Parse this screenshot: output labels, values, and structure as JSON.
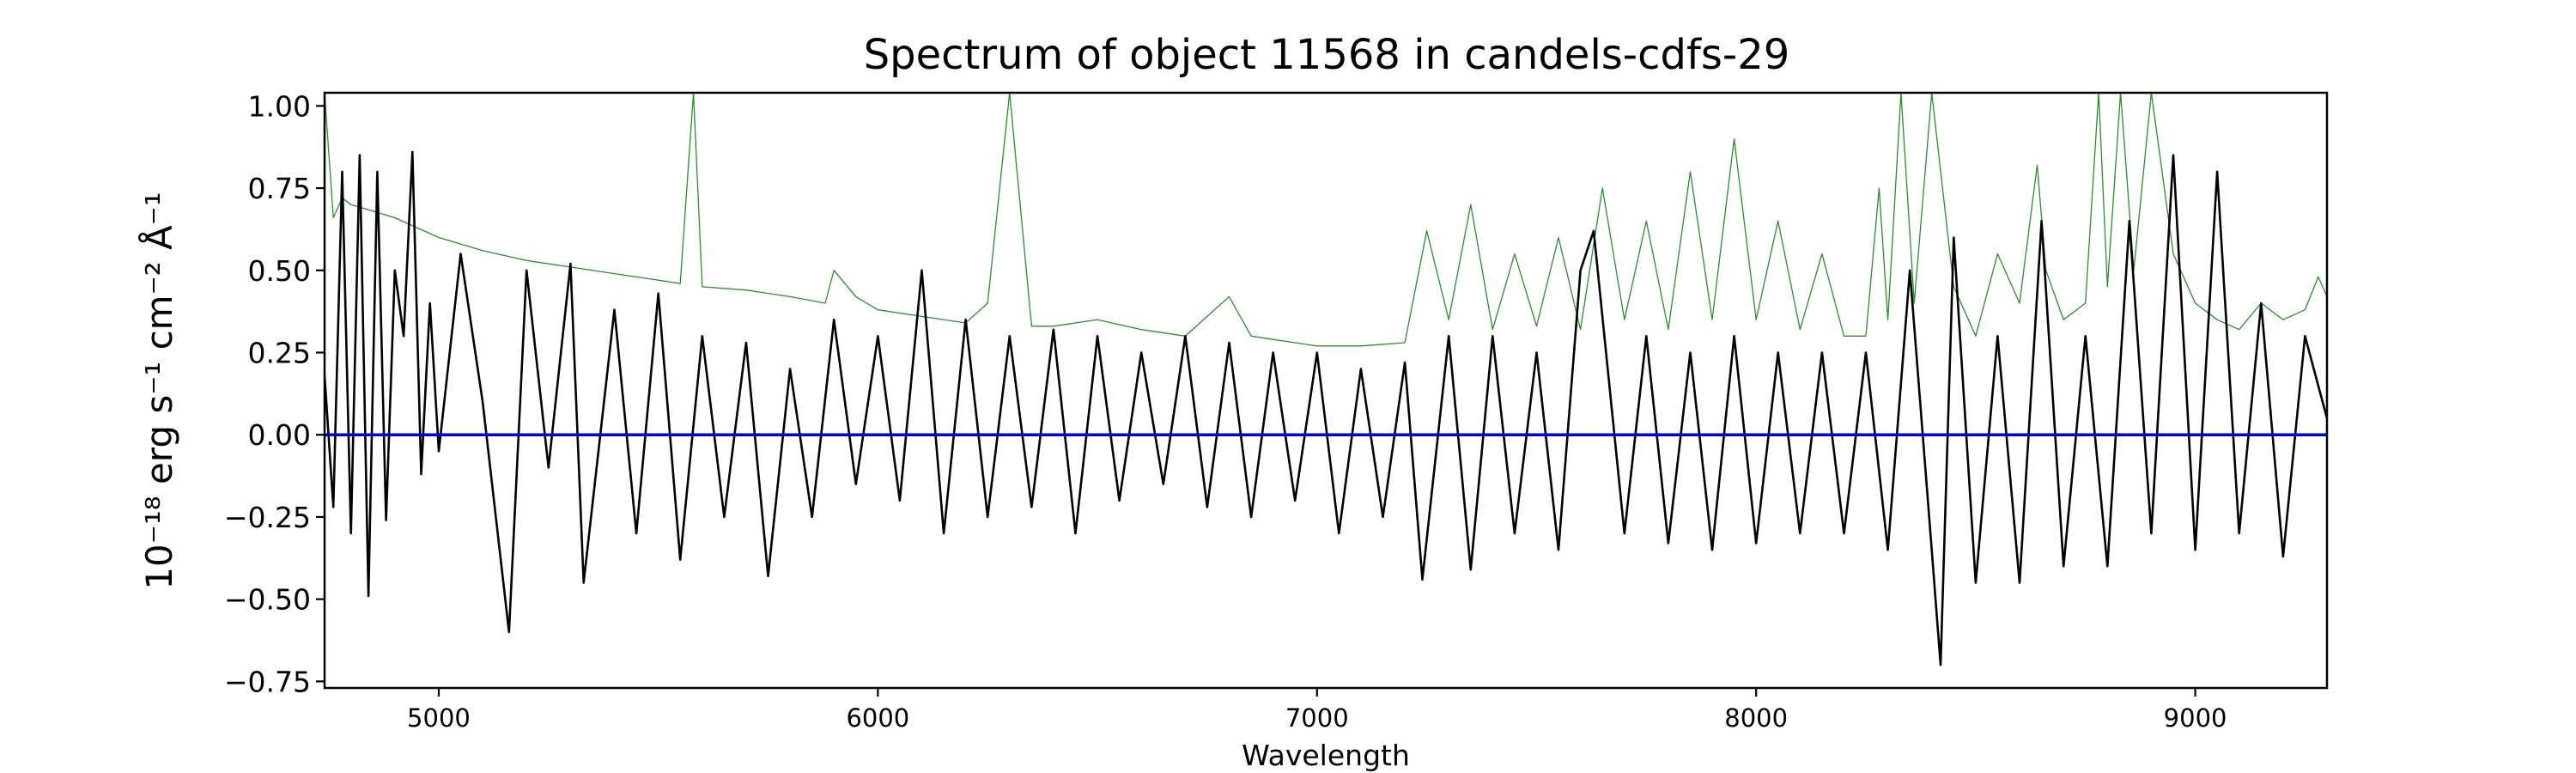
{
  "chart_data": {
    "type": "line",
    "title": "Spectrum of object 11568 in candels-cdfs-29",
    "xlabel": "Wavelength",
    "ylabel": "10⁻¹⁸ erg s⁻¹ cm⁻² Å⁻¹",
    "xlim": [
      4740,
      9300
    ],
    "ylim": [
      -0.77,
      1.04
    ],
    "xticks": [
      5000,
      6000,
      7000,
      8000,
      9000
    ],
    "xtick_labels": [
      "5000",
      "6000",
      "7000",
      "8000",
      "9000"
    ],
    "yticks": [
      -0.75,
      -0.5,
      -0.25,
      0.0,
      0.25,
      0.5,
      0.75,
      1.0
    ],
    "ytick_labels": [
      "−0.75",
      "−0.50",
      "−0.25",
      "0.00",
      "0.25",
      "0.50",
      "0.75",
      "1.00"
    ],
    "grid": false,
    "series": [
      {
        "role": "flux",
        "color": "#000000",
        "x": [
          4740,
          4760,
          4780,
          4800,
          4820,
          4840,
          4860,
          4880,
          4900,
          4920,
          4940,
          4960,
          4980,
          5000,
          5050,
          5100,
          5160,
          5200,
          5250,
          5300,
          5330,
          5400,
          5450,
          5500,
          5550,
          5600,
          5650,
          5700,
          5750,
          5800,
          5850,
          5900,
          5950,
          6000,
          6050,
          6100,
          6150,
          6200,
          6250,
          6300,
          6350,
          6400,
          6450,
          6500,
          6550,
          6600,
          6650,
          6700,
          6750,
          6800,
          6850,
          6900,
          6950,
          7000,
          7050,
          7100,
          7150,
          7200,
          7240,
          7300,
          7350,
          7400,
          7450,
          7500,
          7550,
          7600,
          7630,
          7700,
          7750,
          7800,
          7850,
          7900,
          7950,
          8000,
          8050,
          8100,
          8150,
          8200,
          8250,
          8300,
          8350,
          8400,
          8420,
          8450,
          8500,
          8550,
          8600,
          8650,
          8700,
          8750,
          8800,
          8850,
          8900,
          8950,
          9000,
          9050,
          9100,
          9150,
          9200,
          9250,
          9300
        ],
        "y": [
          0.18,
          -0.22,
          0.8,
          -0.3,
          0.85,
          -0.49,
          0.8,
          -0.26,
          0.5,
          0.3,
          0.86,
          -0.12,
          0.4,
          -0.05,
          0.55,
          0.1,
          -0.6,
          0.5,
          -0.1,
          0.52,
          -0.45,
          0.38,
          -0.3,
          0.43,
          -0.38,
          0.3,
          -0.25,
          0.28,
          -0.43,
          0.2,
          -0.25,
          0.35,
          -0.15,
          0.3,
          -0.2,
          0.5,
          -0.3,
          0.35,
          -0.25,
          0.3,
          -0.22,
          0.32,
          -0.3,
          0.3,
          -0.2,
          0.25,
          -0.15,
          0.3,
          -0.22,
          0.28,
          -0.25,
          0.25,
          -0.2,
          0.25,
          -0.3,
          0.2,
          -0.25,
          0.22,
          -0.44,
          0.3,
          -0.41,
          0.3,
          -0.3,
          0.25,
          -0.35,
          0.5,
          0.62,
          -0.3,
          0.3,
          -0.33,
          0.25,
          -0.35,
          0.3,
          -0.33,
          0.25,
          -0.3,
          0.25,
          -0.3,
          0.25,
          -0.35,
          0.5,
          -0.35,
          -0.7,
          0.6,
          -0.45,
          0.3,
          -0.45,
          0.65,
          -0.4,
          0.3,
          -0.4,
          0.65,
          -0.3,
          0.85,
          -0.35,
          0.8,
          -0.3,
          0.4,
          -0.37,
          0.3,
          0.05
        ]
      },
      {
        "role": "error",
        "color": "#2e8b2e",
        "x": [
          4740,
          4750,
          4760,
          4780,
          4800,
          4850,
          4900,
          5000,
          5100,
          5200,
          5300,
          5400,
          5500,
          5550,
          5580,
          5600,
          5700,
          5800,
          5880,
          5900,
          5950,
          6000,
          6100,
          6200,
          6250,
          6300,
          6350,
          6400,
          6500,
          6600,
          6700,
          6800,
          6850,
          6900,
          7000,
          7100,
          7200,
          7250,
          7300,
          7350,
          7400,
          7450,
          7500,
          7550,
          7600,
          7650,
          7700,
          7750,
          7800,
          7850,
          7900,
          7950,
          8000,
          8050,
          8100,
          8150,
          8200,
          8250,
          8280,
          8300,
          8330,
          8360,
          8400,
          8450,
          8500,
          8550,
          8600,
          8640,
          8660,
          8700,
          8750,
          8780,
          8800,
          8830,
          8860,
          8900,
          8950,
          9000,
          9050,
          9100,
          9150,
          9200,
          9250,
          9280,
          9300
        ],
        "y": [
          1.04,
          0.85,
          0.66,
          0.72,
          0.7,
          0.68,
          0.66,
          0.6,
          0.56,
          0.53,
          0.51,
          0.49,
          0.47,
          0.46,
          1.04,
          0.45,
          0.44,
          0.42,
          0.4,
          0.5,
          0.42,
          0.38,
          0.36,
          0.34,
          0.4,
          1.04,
          0.33,
          0.33,
          0.35,
          0.32,
          0.3,
          0.42,
          0.3,
          0.29,
          0.27,
          0.27,
          0.28,
          0.62,
          0.35,
          0.7,
          0.32,
          0.55,
          0.33,
          0.6,
          0.32,
          0.75,
          0.35,
          0.65,
          0.32,
          0.8,
          0.35,
          0.9,
          0.35,
          0.65,
          0.32,
          0.55,
          0.3,
          0.3,
          0.75,
          0.35,
          1.04,
          0.4,
          1.04,
          0.45,
          0.3,
          0.55,
          0.4,
          0.82,
          0.5,
          0.35,
          0.4,
          1.04,
          0.45,
          1.04,
          0.5,
          1.04,
          0.55,
          0.4,
          0.35,
          0.32,
          0.4,
          0.35,
          0.38,
          0.48,
          0.42
        ]
      },
      {
        "role": "continuum",
        "color": "#0000cc",
        "x": [
          4740,
          9300
        ],
        "y": [
          0.0,
          0.0
        ]
      }
    ]
  }
}
